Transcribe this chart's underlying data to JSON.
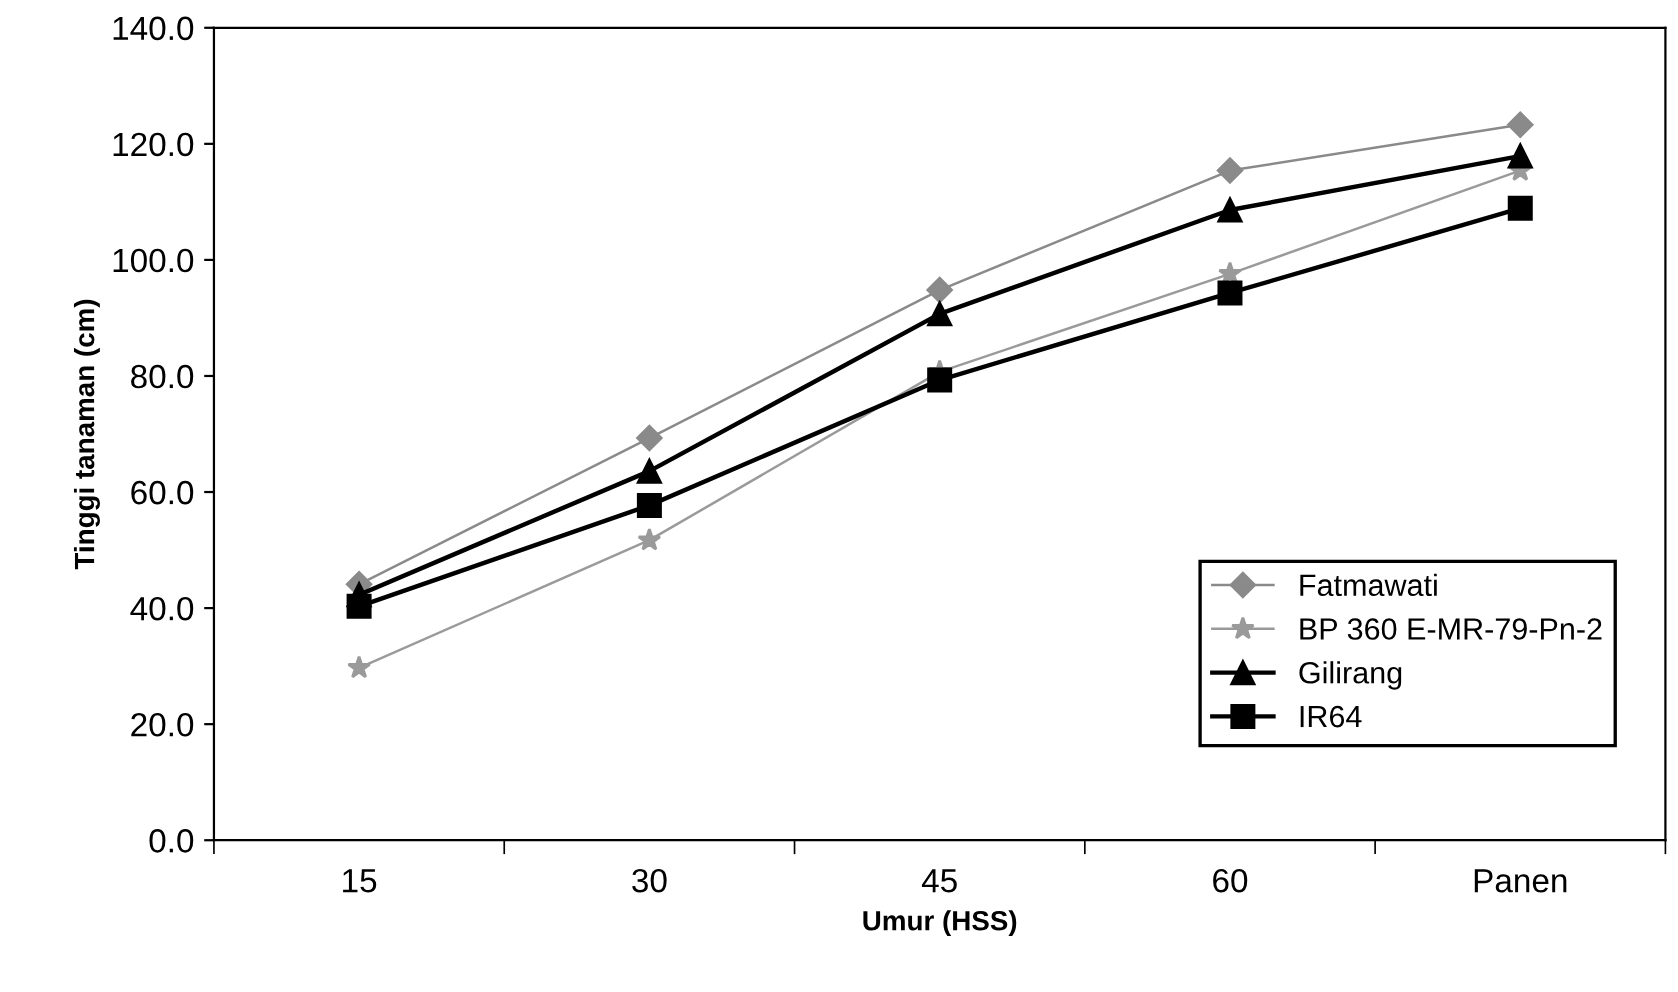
{
  "chart_data": {
    "type": "line",
    "xlabel": "Umur (HSS)",
    "ylabel": "Tinggi tanaman (cm)",
    "categories": [
      "15",
      "30",
      "45",
      "60",
      "Panen"
    ],
    "series": [
      {
        "name": "Fatmawati",
        "color": "#8a8a8a",
        "marker": "diamond",
        "values": [
          44.1,
          69.3,
          94.8,
          115.4,
          123.3
        ]
      },
      {
        "name": "BP 360 E-MR-79-Pn-2",
        "color": "#9a9a9a",
        "marker": "star",
        "values": [
          29.7,
          51.7,
          80.7,
          97.6,
          115.4
        ]
      },
      {
        "name": "Gilirang",
        "color": "#000000",
        "marker": "triangle",
        "values": [
          42.3,
          63.6,
          90.7,
          108.6,
          117.9
        ]
      },
      {
        "name": "IR64",
        "color": "#000000",
        "marker": "square",
        "values": [
          40.3,
          57.7,
          79.3,
          94.3,
          108.9
        ]
      }
    ],
    "ylim": [
      0,
      140
    ],
    "yticks": [
      {
        "value": 0,
        "label": "0.0"
      },
      {
        "value": 20,
        "label": "20.0"
      },
      {
        "value": 40,
        "label": "40.0"
      },
      {
        "value": 60,
        "label": "60.0"
      },
      {
        "value": 80,
        "label": "80.0"
      },
      {
        "value": 100,
        "label": "100.0"
      },
      {
        "value": 120,
        "label": "120.0"
      },
      {
        "value": 140,
        "label": "140.0"
      }
    ],
    "grid": false,
    "legend": "bottom right"
  }
}
